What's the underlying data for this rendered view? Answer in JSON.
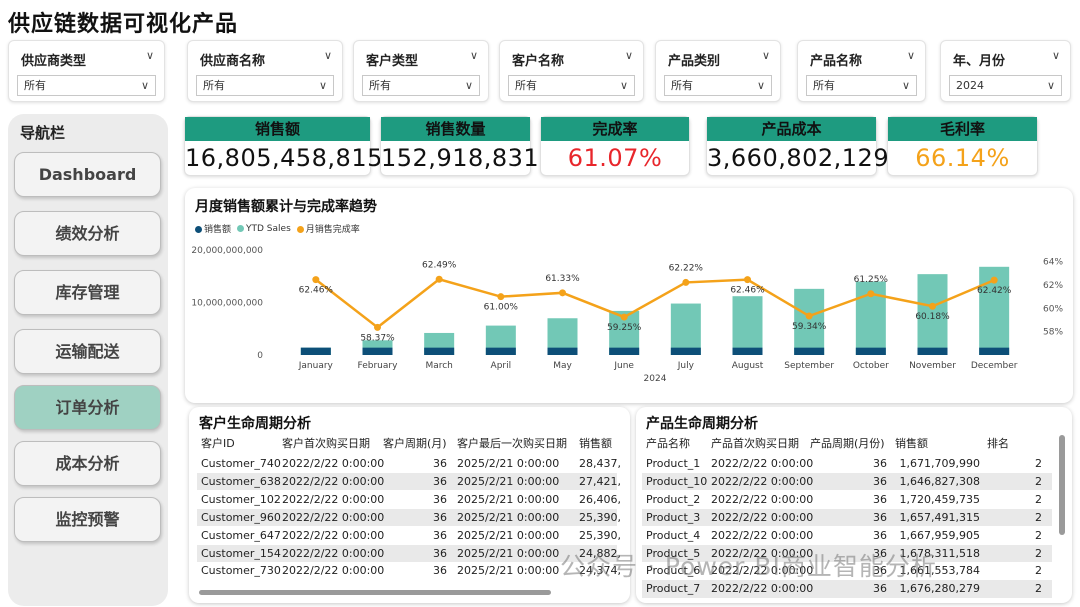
{
  "app_title": "供应链数据可视化产品",
  "filters": [
    {
      "label": "供应商类型",
      "value": "所有"
    },
    {
      "label": "供应商名称",
      "value": "所有"
    },
    {
      "label": "客户类型",
      "value": "所有"
    },
    {
      "label": "客户名称",
      "value": "所有"
    },
    {
      "label": "产品类别",
      "value": "所有"
    },
    {
      "label": "产品名称",
      "value": "所有"
    },
    {
      "label": "年、月份",
      "value": "2024"
    }
  ],
  "nav": {
    "title": "导航栏",
    "items": [
      {
        "label": "Dashboard",
        "active": false
      },
      {
        "label": "绩效分析",
        "active": false
      },
      {
        "label": "库存管理",
        "active": false
      },
      {
        "label": "运输配送",
        "active": false
      },
      {
        "label": "订单分析",
        "active": true
      },
      {
        "label": "成本分析",
        "active": false
      },
      {
        "label": "监控预警",
        "active": false
      }
    ]
  },
  "kpis": [
    {
      "label": "销售额",
      "value": "16,805,458,815",
      "color": "#111111"
    },
    {
      "label": "销售数量",
      "value": "152,918,831",
      "color": "#111111"
    },
    {
      "label": "完成率",
      "value": "61.07%",
      "color": "#e8262b"
    },
    {
      "label": "产品成本",
      "value": "3,660,802,129",
      "color": "#111111"
    },
    {
      "label": "毛利率",
      "value": "66.14%",
      "color": "#f4a21a"
    }
  ],
  "colors": {
    "accent": "#1e9b80",
    "sales": "#0d4f78",
    "ytd": "#72c8b6",
    "rate": "#f4a21a"
  },
  "chart_data": {
    "type": "bar",
    "title": "月度销售额累计与完成率趋势",
    "legend": [
      "销售额",
      "YTD Sales",
      "月销售完成率"
    ],
    "xlabel": "2024",
    "categories": [
      "January",
      "February",
      "March",
      "April",
      "May",
      "June",
      "July",
      "August",
      "September",
      "October",
      "November",
      "December"
    ],
    "left_ticks": [
      "20,000,000,000",
      "10,000,000,000",
      "0"
    ],
    "right_ticks": [
      "64%",
      "62%",
      "60%",
      "58%"
    ],
    "ylim": [
      0,
      20000000000
    ],
    "y2lim": [
      56,
      65
    ],
    "series": [
      {
        "name": "销售额",
        "type": "bar",
        "values": [
          1400000000,
          1400000000,
          1400000000,
          1400000000,
          1400000000,
          1400000000,
          1400000000,
          1400000000,
          1400000000,
          1400000000,
          1400000000,
          1400000000
        ]
      },
      {
        "name": "YTD Sales",
        "type": "bar",
        "values": [
          1400000000,
          2800000000,
          4200000000,
          5600000000,
          7000000000,
          8400000000,
          9800000000,
          11200000000,
          12600000000,
          14000000000,
          15400000000,
          16800000000
        ]
      },
      {
        "name": "月销售完成率",
        "type": "line",
        "values": [
          62.46,
          58.37,
          62.49,
          61.0,
          61.33,
          59.25,
          62.22,
          62.46,
          59.34,
          61.25,
          60.18,
          62.42
        ],
        "labels": [
          "62.46%",
          "58.37%",
          "62.49%",
          "61.00%",
          "61.33%",
          "59.25%",
          "62.22%",
          "62.46%",
          "59.34%",
          "61.25%",
          "60.18%",
          "62.42%"
        ]
      }
    ]
  },
  "customer_table": {
    "title": "客户生命周期分析",
    "headers": [
      "客户ID",
      "客户首次购买日期",
      "客户周期(月)",
      "客户最后一次购买日期",
      "销售额"
    ],
    "rows": [
      [
        "Customer_740",
        "2022/2/22 0:00:00",
        "36",
        "2025/2/21 0:00:00",
        "28,437,"
      ],
      [
        "Customer_638",
        "2022/2/22 0:00:00",
        "36",
        "2025/2/21 0:00:00",
        "27,421,"
      ],
      [
        "Customer_102",
        "2022/2/22 0:00:00",
        "36",
        "2025/2/21 0:00:00",
        "26,406,"
      ],
      [
        "Customer_960",
        "2022/2/22 0:00:00",
        "36",
        "2025/2/21 0:00:00",
        "25,390,"
      ],
      [
        "Customer_647",
        "2022/2/22 0:00:00",
        "36",
        "2025/2/21 0:00:00",
        "25,390,"
      ],
      [
        "Customer_154",
        "2022/2/22 0:00:00",
        "36",
        "2025/2/21 0:00:00",
        "24,882,"
      ],
      [
        "Customer_730",
        "2022/2/22 0:00:00",
        "36",
        "2025/2/21 0:00:00",
        "24,374,"
      ]
    ]
  },
  "product_table": {
    "title": "产品生命周期分析",
    "headers": [
      "产品名称",
      "产品首次购买日期",
      "产品周期(月份)",
      "销售额",
      "排名"
    ],
    "rows": [
      [
        "Product_1",
        "2022/2/22 0:00:00",
        "36",
        "1,671,709,990",
        "2"
      ],
      [
        "Product_10",
        "2022/2/22 0:00:00",
        "36",
        "1,646,827,308",
        "2"
      ],
      [
        "Product_2",
        "2022/2/22 0:00:00",
        "36",
        "1,720,459,735",
        "2"
      ],
      [
        "Product_3",
        "2022/2/22 0:00:00",
        "36",
        "1,657,491,315",
        "2"
      ],
      [
        "Product_4",
        "2022/2/22 0:00:00",
        "36",
        "1,667,959,905",
        "2"
      ],
      [
        "Product_5",
        "2022/2/22 0:00:00",
        "36",
        "1,678,311,518",
        "2"
      ],
      [
        "Product_6",
        "2022/2/22 0:00:00",
        "36",
        "1,661,553,784",
        "2"
      ],
      [
        "Product_7",
        "2022/2/22 0:00:00",
        "36",
        "1,676,280,279",
        "2"
      ]
    ]
  },
  "watermark": "公众号 · Power BI商业智能分析"
}
